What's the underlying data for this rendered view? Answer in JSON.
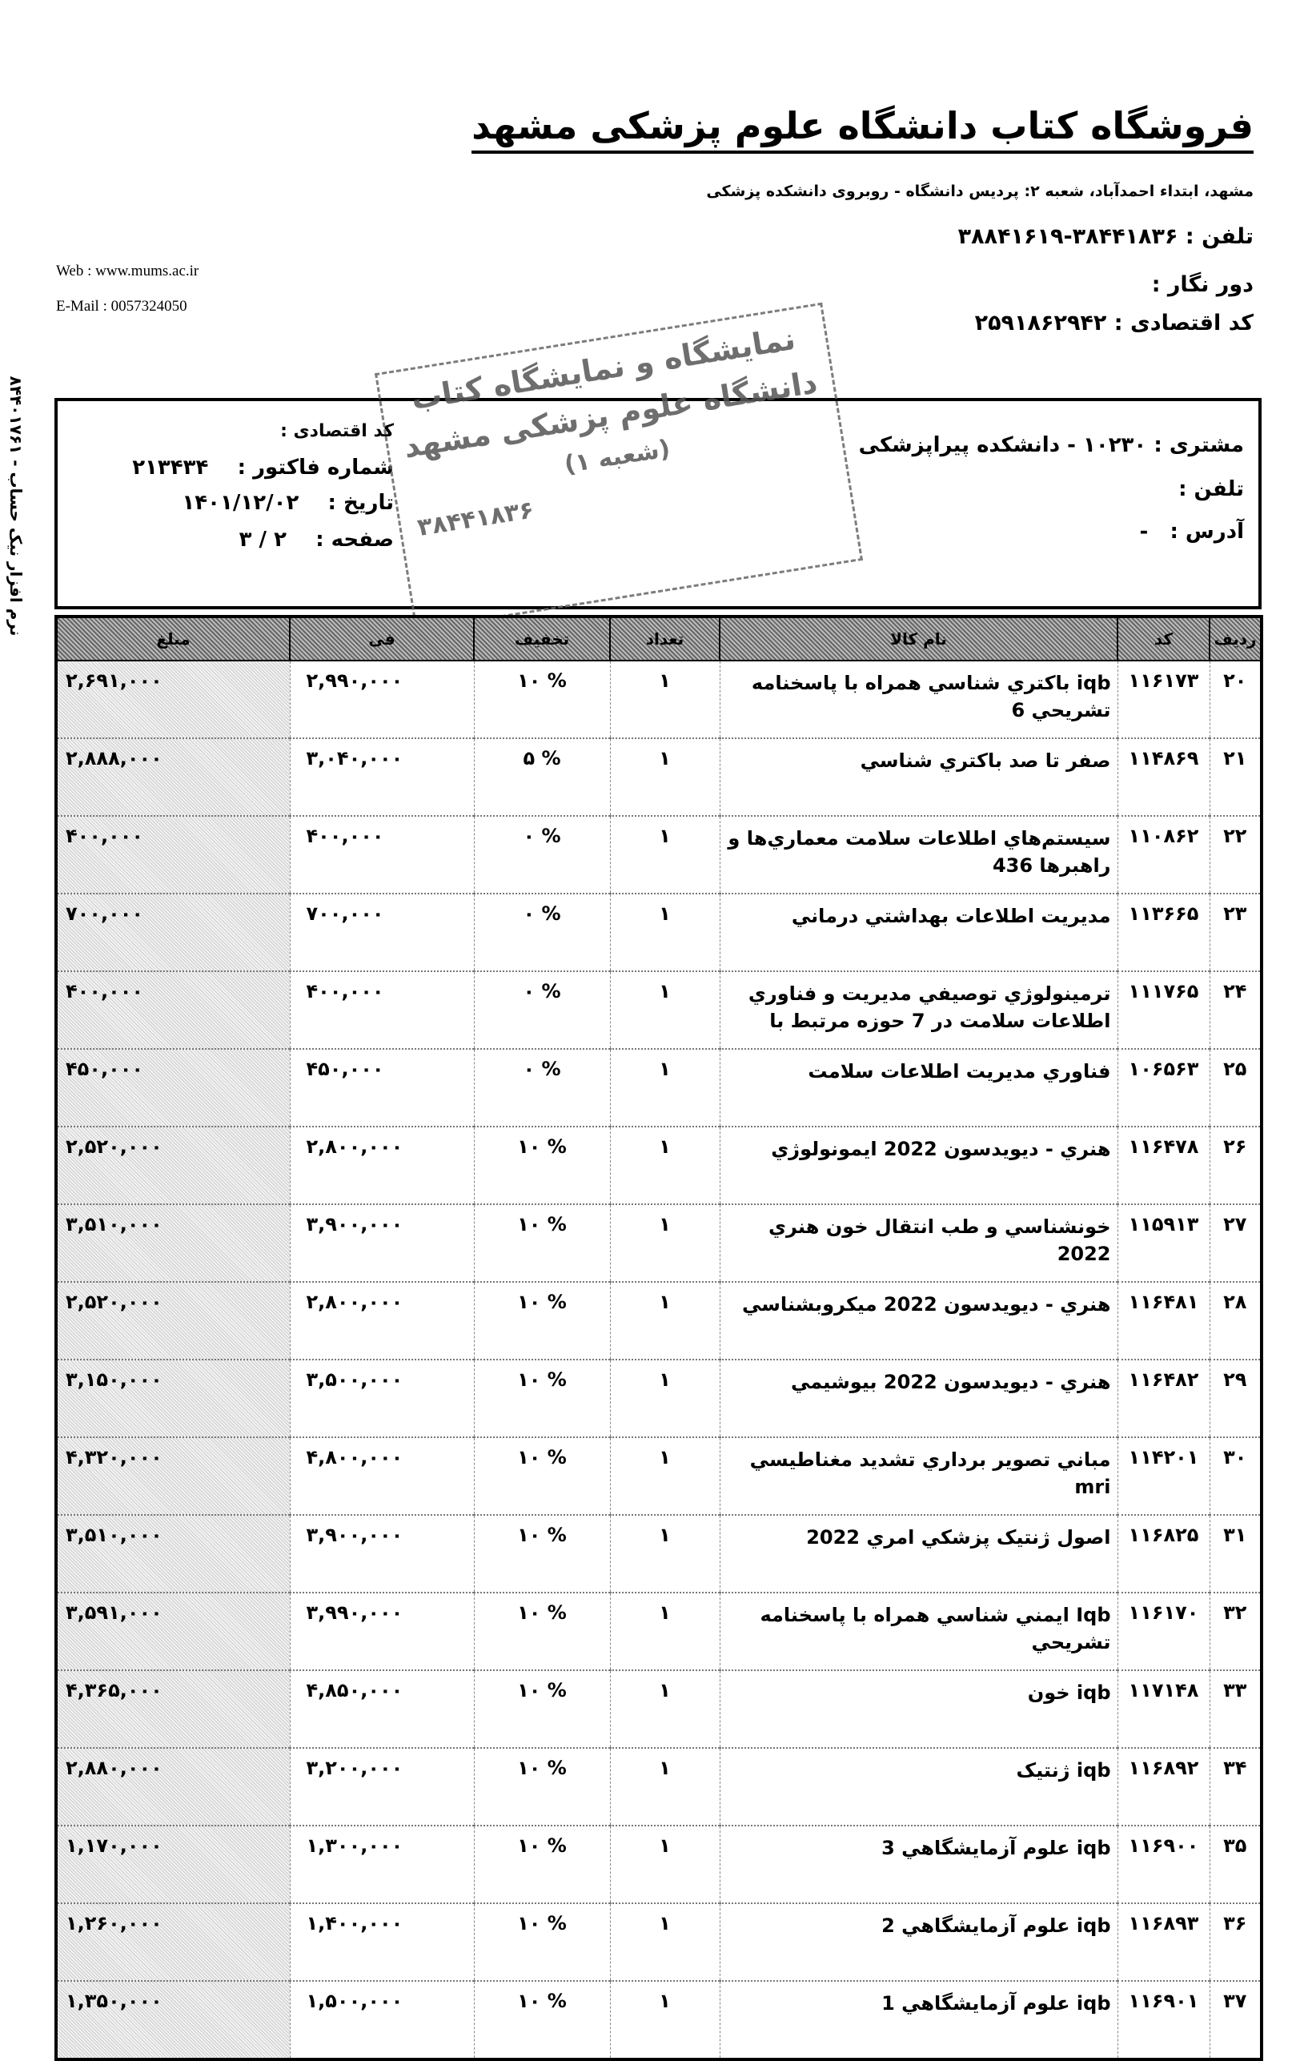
{
  "store": {
    "title": "فروشگاه کتاب دانشگاه علوم پزشکی مشهد",
    "address": "مشهد، ابتداء احمدآباد، شعبه ۲: پردیس دانشگاه - روبروی دانشکده پزشکی",
    "phone_label": "تلفن :",
    "phone": "۳۸۴۴۱۸۳۶-۳۸۸۴۱۶۱۹",
    "fax_label": "دور نگار :",
    "econ_code_label": "کد اقتصادی :",
    "econ_code": "۲۵۹۱۸۶۲۹۴۲",
    "web": "Web : www.mums.ac.ir",
    "email": "E-Mail : 0057324050"
  },
  "side_note": "نرم افزار نیک حساب - ۸۴۴۰۱۷۶۱",
  "customer": {
    "customer_label": "مشتری :",
    "customer": "۱۰۲۳۰  -  دانشکده پیراپزشکی",
    "phone_label": "تلفن :",
    "address_label": "آدرس :",
    "address": "-",
    "econ_code_label": "کد اقتصادی :",
    "invoice_no_label": "شماره فاکتور :",
    "invoice_no": "۲۱۳۴۳۴",
    "date_label": "تاریخ :",
    "date": "۱۴۰۱/۱۲/۰۲",
    "page_label": "صفحه :",
    "page": "۲ / ۳"
  },
  "stamp": {
    "line1": "نمایشگاه و نمایشگاه کتاب",
    "line2": "دانشگاه علوم پزشکی مشهد",
    "line3": "(شعبه ۱)",
    "line4": "۳۸۴۴۱۸۳۶"
  },
  "table": {
    "headers": [
      "ردیف",
      "کد",
      "نام کالا",
      "تعداد",
      "تخفیف",
      "فی",
      "مبلغ"
    ],
    "rows": [
      [
        "۲۰",
        "۱۱۶۱۷۳",
        "iqb باكتري شناسي همراه با پاسخنامه تشريحي 6",
        "۱",
        "% ۱۰",
        "۲,۹۹۰,۰۰۰",
        "۲,۶۹۱,۰۰۰"
      ],
      [
        "۲۱",
        "۱۱۴۸۶۹",
        "صفر تا صد باكتري شناسي",
        "۱",
        "% ۵",
        "۳,۰۴۰,۰۰۰",
        "۲,۸۸۸,۰۰۰"
      ],
      [
        "۲۲",
        "۱۱۰۸۶۲",
        "سيستم‌هاي اطلاعات سلامت معماري‌ها و راهبرها 436",
        "۱",
        "% ۰",
        "۴۰۰,۰۰۰",
        "۴۰۰,۰۰۰"
      ],
      [
        "۲۳",
        "۱۱۳۶۶۵",
        "مديريت اطلاعات بهداشتي درماني",
        "۱",
        "% ۰",
        "۷۰۰,۰۰۰",
        "۷۰۰,۰۰۰"
      ],
      [
        "۲۴",
        "۱۱۱۷۶۵",
        "ترمينولوژي توصيفي مديريت و فناوري اطلاعات سلامت در 7 حوزه مرتبط با",
        "۱",
        "% ۰",
        "۴۰۰,۰۰۰",
        "۴۰۰,۰۰۰"
      ],
      [
        "۲۵",
        "۱۰۶۵۶۳",
        "فناوري مديريت اطلاعات سلامت",
        "۱",
        "% ۰",
        "۴۵۰,۰۰۰",
        "۴۵۰,۰۰۰"
      ],
      [
        "۲۶",
        "۱۱۶۴۷۸",
        "هنري - ديويدسون 2022 ايمونولوژي",
        "۱",
        "% ۱۰",
        "۲,۸۰۰,۰۰۰",
        "۲,۵۲۰,۰۰۰"
      ],
      [
        "۲۷",
        "۱۱۵۹۱۳",
        "خونشناسي و طب انتقال خون هنري 2022",
        "۱",
        "% ۱۰",
        "۳,۹۰۰,۰۰۰",
        "۳,۵۱۰,۰۰۰"
      ],
      [
        "۲۸",
        "۱۱۶۴۸۱",
        "هنري - ديويدسون 2022 ميكروبشناسي",
        "۱",
        "% ۱۰",
        "۲,۸۰۰,۰۰۰",
        "۲,۵۲۰,۰۰۰"
      ],
      [
        "۲۹",
        "۱۱۶۴۸۲",
        "هنري - ديويدسون 2022  بيوشيمي",
        "۱",
        "% ۱۰",
        "۳,۵۰۰,۰۰۰",
        "۳,۱۵۰,۰۰۰"
      ],
      [
        "۳۰",
        "۱۱۴۲۰۱",
        "مباني تصوير برداري تشديد مغناطيسي mri",
        "۱",
        "% ۱۰",
        "۴,۸۰۰,۰۰۰",
        "۴,۳۲۰,۰۰۰"
      ],
      [
        "۳۱",
        "۱۱۶۸۲۵",
        "اصول ژنتيک پزشكي امري 2022",
        "۱",
        "% ۱۰",
        "۳,۹۰۰,۰۰۰",
        "۳,۵۱۰,۰۰۰"
      ],
      [
        "۳۲",
        "۱۱۶۱۷۰",
        "Iqb  ايمني شناسي همراه با پاسخنامه تشريحي",
        "۱",
        "% ۱۰",
        "۳,۹۹۰,۰۰۰",
        "۳,۵۹۱,۰۰۰"
      ],
      [
        "۳۳",
        "۱۱۷۱۴۸",
        "iqb خون",
        "۱",
        "% ۱۰",
        "۴,۸۵۰,۰۰۰",
        "۴,۳۶۵,۰۰۰"
      ],
      [
        "۳۴",
        "۱۱۶۸۹۲",
        "iqb ژنتيک",
        "۱",
        "% ۱۰",
        "۳,۲۰۰,۰۰۰",
        "۲,۸۸۰,۰۰۰"
      ],
      [
        "۳۵",
        "۱۱۶۹۰۰",
        "iqb علوم آزمايشگاهي 3",
        "۱",
        "% ۱۰",
        "۱,۳۰۰,۰۰۰",
        "۱,۱۷۰,۰۰۰"
      ],
      [
        "۳۶",
        "۱۱۶۸۹۳",
        "iqb علوم آزمايشگاهي 2",
        "۱",
        "% ۱۰",
        "۱,۴۰۰,۰۰۰",
        "۱,۲۶۰,۰۰۰"
      ],
      [
        "۳۷",
        "۱۱۶۹۰۱",
        "iqb علوم آزمايشگاهي 1",
        "۱",
        "% ۱۰",
        "۱,۵۰۰,۰۰۰",
        "۱,۳۵۰,۰۰۰"
      ]
    ]
  }
}
